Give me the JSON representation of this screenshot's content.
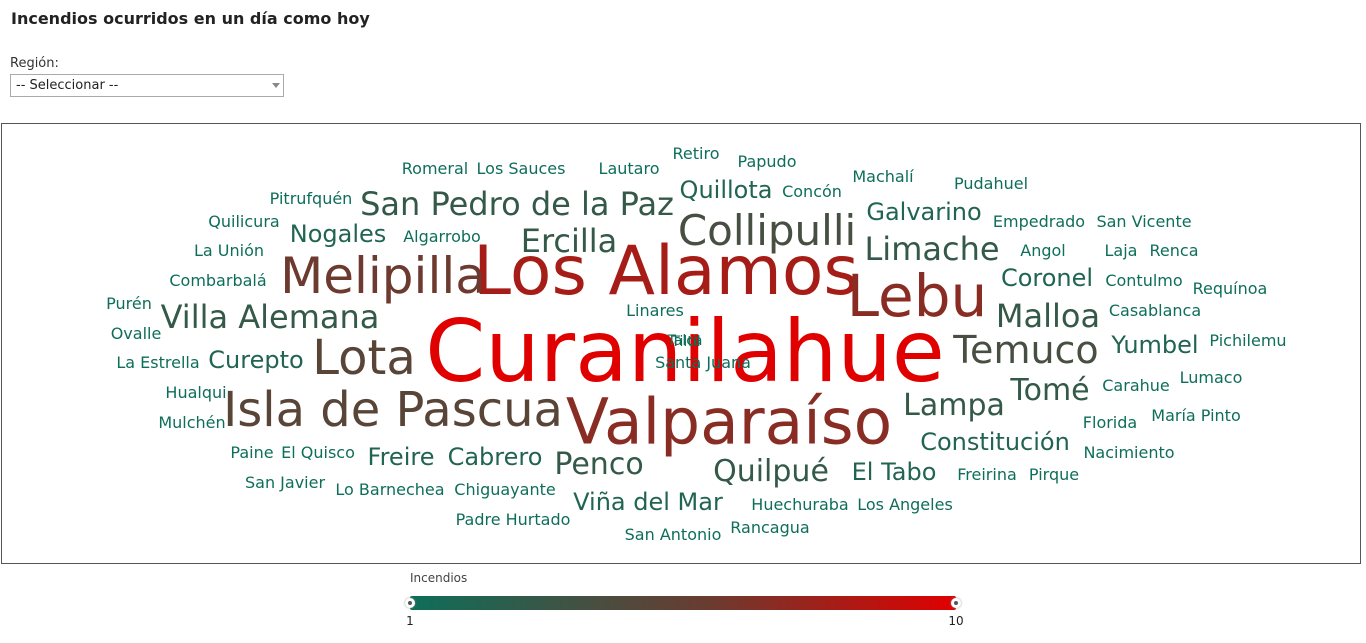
{
  "header": {
    "title": "Incendios ocurridos en un día como hoy"
  },
  "filter": {
    "label": "Región:",
    "selected": "-- Seleccionar --"
  },
  "legend": {
    "title": "Incendios",
    "min_label": "1",
    "max_label": "10",
    "color_low": "#0e6e5a",
    "color_high": "#e00000"
  },
  "chart_data": {
    "type": "wordcloud",
    "value_range": [
      1,
      10
    ],
    "words": [
      {
        "text": "Curanilahue",
        "value": 10
      },
      {
        "text": "Los Alamos",
        "value": 8
      },
      {
        "text": "Valparaíso",
        "value": 7
      },
      {
        "text": "Lebu",
        "value": 7
      },
      {
        "text": "Melipilla",
        "value": 6
      },
      {
        "text": "Isla de Pascua",
        "value": 5
      },
      {
        "text": "Lota",
        "value": 5
      },
      {
        "text": "Collipulli",
        "value": 4
      },
      {
        "text": "Temuco",
        "value": 4
      },
      {
        "text": "San Pedro de la Paz",
        "value": 3
      },
      {
        "text": "Ercilla",
        "value": 3
      },
      {
        "text": "Villa Alemana",
        "value": 3
      },
      {
        "text": "Limache",
        "value": 3
      },
      {
        "text": "Malloa",
        "value": 3
      },
      {
        "text": "Lampa",
        "value": 3
      },
      {
        "text": "Tomé",
        "value": 3
      },
      {
        "text": "Penco",
        "value": 3
      },
      {
        "text": "Quilpué",
        "value": 3
      },
      {
        "text": "Galvarino",
        "value": 2
      },
      {
        "text": "Coronel",
        "value": 2
      },
      {
        "text": "Yumbel",
        "value": 2
      },
      {
        "text": "Constitución",
        "value": 2
      },
      {
        "text": "El Tabo",
        "value": 2
      },
      {
        "text": "Viña del Mar",
        "value": 2
      },
      {
        "text": "Cabrero",
        "value": 2
      },
      {
        "text": "Freire",
        "value": 2
      },
      {
        "text": "Curepto",
        "value": 2
      },
      {
        "text": "Nogales",
        "value": 2
      },
      {
        "text": "Quillota",
        "value": 2
      },
      {
        "text": "Romeral",
        "value": 1
      },
      {
        "text": "Los Sauces",
        "value": 1
      },
      {
        "text": "Lautaro",
        "value": 1
      },
      {
        "text": "Retiro",
        "value": 1
      },
      {
        "text": "Papudo",
        "value": 1
      },
      {
        "text": "Machalí",
        "value": 1
      },
      {
        "text": "Pudahuel",
        "value": 1
      },
      {
        "text": "Pitrufquén",
        "value": 1
      },
      {
        "text": "Concón",
        "value": 1
      },
      {
        "text": "Quilicura",
        "value": 1
      },
      {
        "text": "Empedrado",
        "value": 1
      },
      {
        "text": "San Vicente",
        "value": 1
      },
      {
        "text": "La Unión",
        "value": 1
      },
      {
        "text": "Algarrobo",
        "value": 1
      },
      {
        "text": "Angol",
        "value": 1
      },
      {
        "text": "Laja",
        "value": 1
      },
      {
        "text": "Renca",
        "value": 1
      },
      {
        "text": "Combarbalá",
        "value": 1
      },
      {
        "text": "Contulmo",
        "value": 1
      },
      {
        "text": "Requínoa",
        "value": 1
      },
      {
        "text": "Purén",
        "value": 1
      },
      {
        "text": "Linares",
        "value": 1
      },
      {
        "text": "Casablanca",
        "value": 1
      },
      {
        "text": "Ovalle",
        "value": 1
      },
      {
        "text": "Talca",
        "value": 1
      },
      {
        "text": "Tiltil",
        "value": 1
      },
      {
        "text": "Pichilemu",
        "value": 1
      },
      {
        "text": "La Estrella",
        "value": 1
      },
      {
        "text": "Santa Juana",
        "value": 1
      },
      {
        "text": "Carahue",
        "value": 1
      },
      {
        "text": "Lumaco",
        "value": 1
      },
      {
        "text": "Hualqui",
        "value": 1
      },
      {
        "text": "Florida",
        "value": 1
      },
      {
        "text": "María Pinto",
        "value": 1
      },
      {
        "text": "Mulchén",
        "value": 1
      },
      {
        "text": "Paine",
        "value": 1
      },
      {
        "text": "El Quisco",
        "value": 1
      },
      {
        "text": "Nacimiento",
        "value": 1
      },
      {
        "text": "Freirina",
        "value": 1
      },
      {
        "text": "Pirque",
        "value": 1
      },
      {
        "text": "San Javier",
        "value": 1
      },
      {
        "text": "Lo Barnechea",
        "value": 1
      },
      {
        "text": "Chiguayante",
        "value": 1
      },
      {
        "text": "Huechuraba",
        "value": 1
      },
      {
        "text": "Los Angeles",
        "value": 1
      },
      {
        "text": "Padre Hurtado",
        "value": 1
      },
      {
        "text": "Rancagua",
        "value": 1
      },
      {
        "text": "San Antonio",
        "value": 1
      }
    ]
  }
}
